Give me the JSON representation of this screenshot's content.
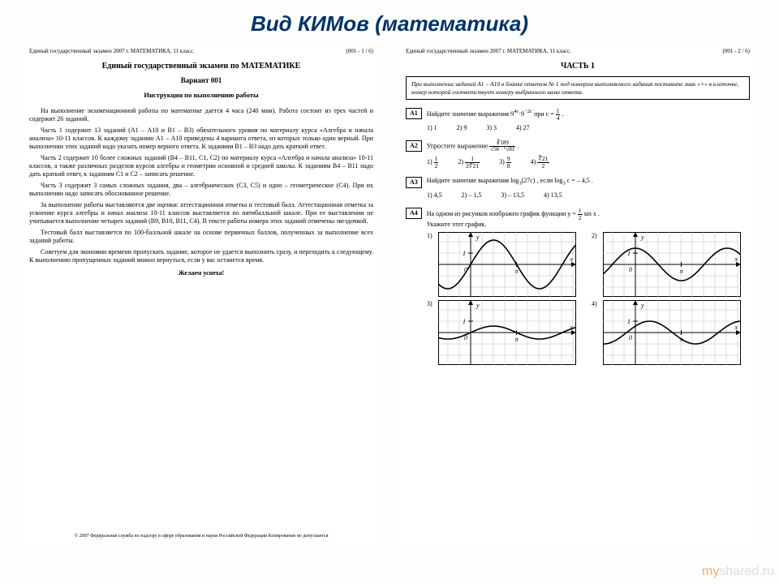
{
  "slide": {
    "title": "Вид КИМов (математика)"
  },
  "header": {
    "left": "Единый государственный экзамен 2007 г.    МАТЕМАТИКА, 11 класс.",
    "page_left": "(001 - 1 / 6)",
    "page_right": "(001 - 2 / 6)"
  },
  "left_page": {
    "title": "Единый государственный экзамен по МАТЕМАТИКЕ",
    "variant": "Вариант 001",
    "instr_title": "Инструкция по выполнению работы",
    "p1": "На выполнение экзаменационной работы по математике дается 4 часа (240 мин). Работа состоит из трех частей и содержит 26 заданий.",
    "p2": "Часть 1 содержит 13 заданий (А1 – А10 и В1 – В3) обязательного уровня по материалу курса «Алгебра и начала анализа» 10-11 классов. К каждому заданию А1 – А10 приведены 4 варианта ответа, из которых только один верный. При выполнении этих заданий надо указать номер верного ответа. К заданиям В1 – В3 надо дать краткий ответ.",
    "p3": "Часть 2 содержит 10 более сложных заданий (В4 – В11, С1, С2) по материалу курса «Алгебра и начала анализа» 10-11 классов, а также различных разделов курсов алгебры и геометрии основной и средней школы. К заданиям В4 – В11 надо дать краткий ответ, к заданиям С1 и С2 – записать решение.",
    "p4": "Часть 3 содержит 3 самых сложных задания, два – алгебраических (С3, С5) и одно – геометрическое (С4). При их выполнении надо записать обоснованное решение.",
    "p5": "За выполнение работы выставляются две оценки: аттестационная отметка и тестовый балл. Аттестационная отметка за усвоение курса алгебры и начал анализа 10-11 классов выставляется по пятибалльной шкале. При ее выставлении не учитывается выполнение четырех заданий (В9, В10, В11, С4). В тексте работы номера этих заданий отмечены звездочкой.",
    "p6": "Тестовый балл выставляется по 100-балльной шкале на основе первичных баллов, полученных за выполнение всех заданий работы.",
    "p7": "Советуем для экономии времени пропускать задание, которое не удается выполнить сразу, и переходить к следующему. К выполнению пропущенных заданий можно вернуться, если у вас останется время.",
    "wish": "Желаем успеха!",
    "footer": "© 2007 Федеральная служба по надзору в сфере образования и науки Российской Федерации\nКопирование не допускается"
  },
  "right_page": {
    "part": "ЧАСТЬ 1",
    "box": "При выполнении заданий А1 – А10 в бланке ответов № 1 под номером выполняемого задания поставьте знак «×» в клеточке, номер которой соответствует номеру выбранного вами ответа.",
    "A1": {
      "label": "А1",
      "text_prefix": "Найдите значение выражения ",
      "expr": "9^{4c}·9^{-2c}",
      "text_mid": " при ",
      "cond": "c = 1/4",
      "answers": [
        "1)  1",
        "2)  9",
        "3)  3",
        "4)  27"
      ]
    },
    "A2": {
      "label": "А2",
      "text": "Упростите выражение ",
      "answers_n": [
        "1)",
        "2)",
        "3)",
        "4)"
      ]
    },
    "A3": {
      "label": "А3",
      "text_prefix": "Найдите значение выражения ",
      "expr": "log₃(27c)",
      "text_mid": ", если ",
      "cond": "log₃ c = – 4,5",
      "answers": [
        "1)  4,5",
        "2)  – 1,5",
        "3)  – 13,5",
        "4)  13,5"
      ]
    },
    "A4": {
      "label": "А4",
      "text_prefix": "На одном из рисунков изображен график функции ",
      "func": "y = ½ sin x",
      "text_suffix": "Укажите этот график."
    }
  },
  "graphs": {
    "grid_color": "#bcbcbc",
    "axis_color": "#000000",
    "curve_color": "#000000",
    "width": 170,
    "height": 80,
    "labels": {
      "x": "x",
      "y": "y",
      "pi": "π",
      "one": "1",
      "zero": "0"
    }
  },
  "watermark": {
    "text1": "my",
    "text2": "shared.ru"
  }
}
